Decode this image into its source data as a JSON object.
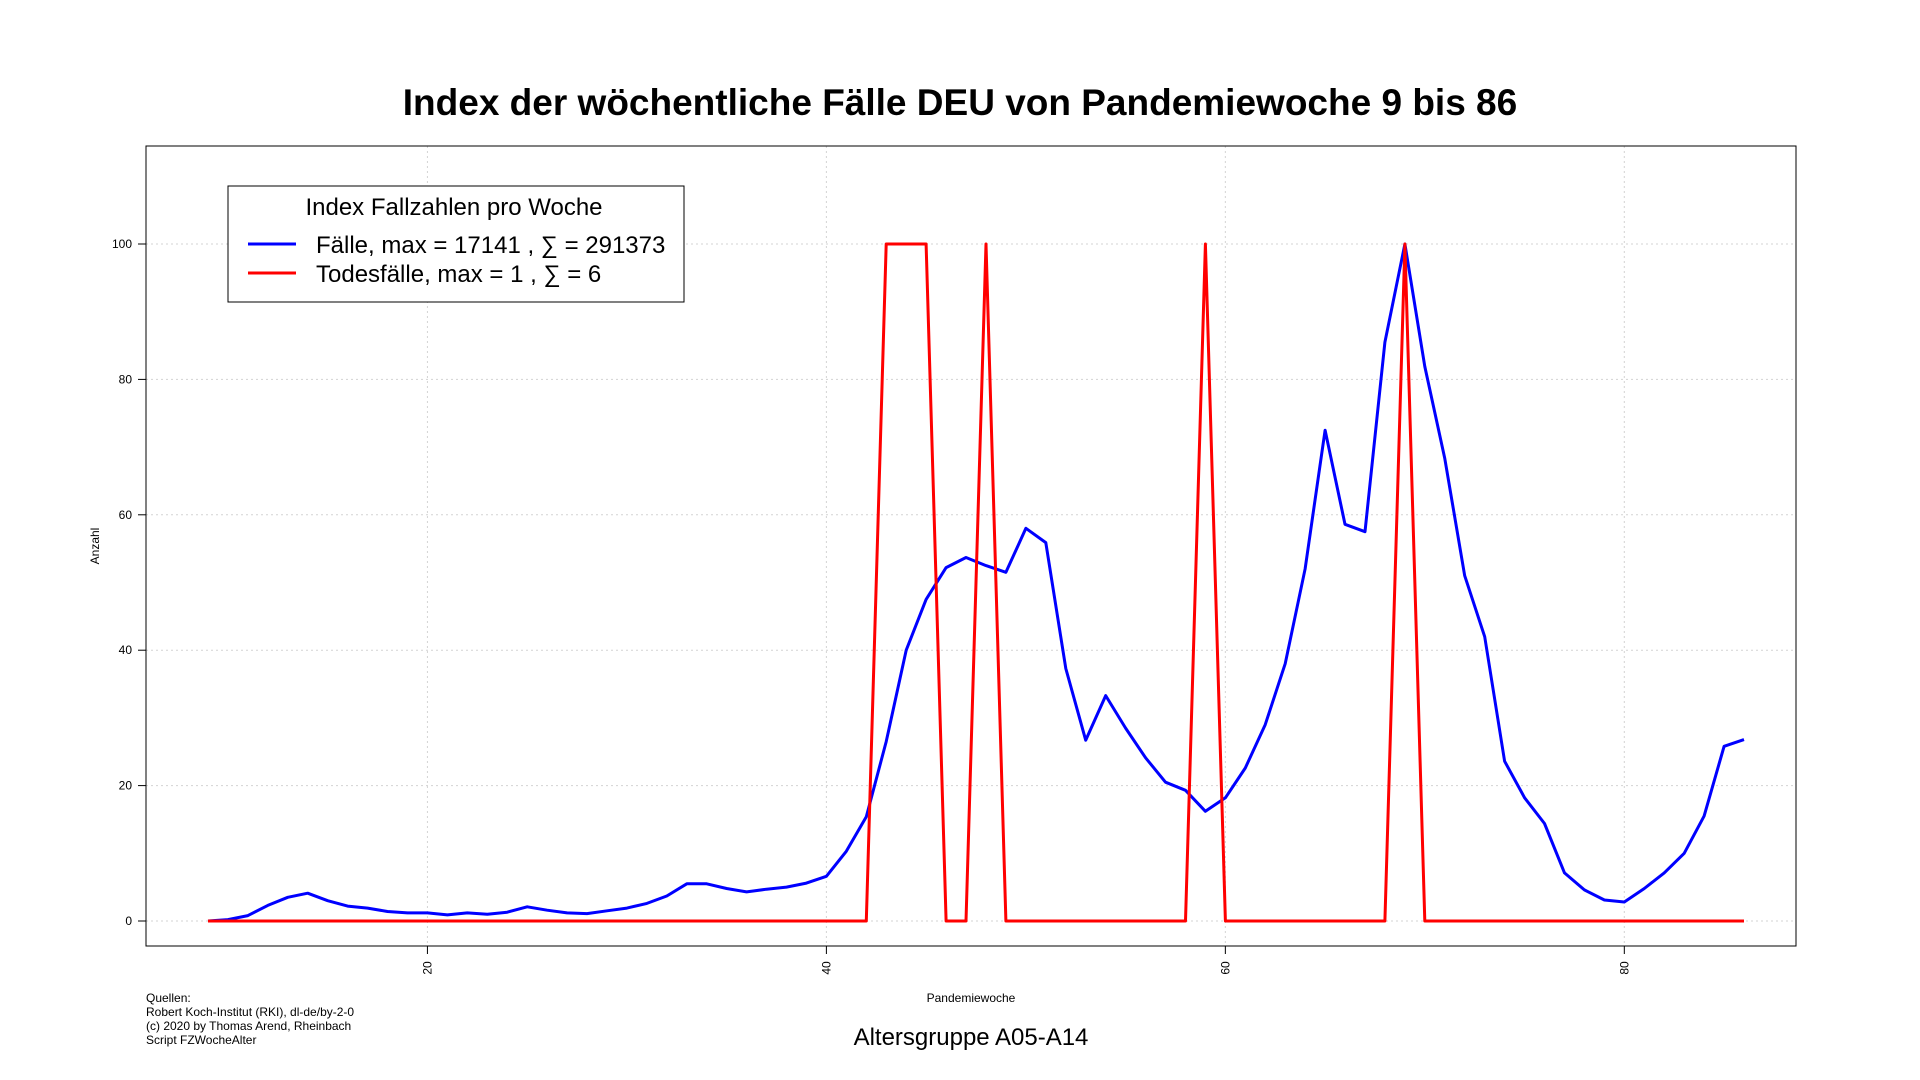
{
  "chart_data": {
    "type": "line",
    "title": "Index der wöchentliche Fälle DEU von Pandemiewoche 9 bis 86",
    "xlabel": "Pandemiewoche",
    "ylabel": "Anzahl",
    "xlim": [
      9,
      86
    ],
    "ylim": [
      0,
      100
    ],
    "xticks": [
      20,
      40,
      60,
      80
    ],
    "yticks": [
      0,
      20,
      40,
      60,
      80,
      100
    ],
    "grid": true,
    "legend": {
      "title": "Index Fallzahlen pro Woche",
      "position": "top-left"
    },
    "subtitle": "Altersgruppe A05-A14",
    "source_lines": [
      "Quellen:",
      "Robert Koch-Institut (RKI), dl-de/by-2-0",
      "(c) 2020 by Thomas Arend, Rheinbach",
      "Script FZWocheAlter"
    ],
    "series": [
      {
        "name": "Fälle, max = 17141 ,  ∑  = 291373",
        "color": "#0000ff",
        "x": [
          9,
          10,
          11,
          12,
          13,
          14,
          15,
          16,
          17,
          18,
          19,
          20,
          21,
          22,
          23,
          24,
          25,
          26,
          27,
          28,
          29,
          30,
          31,
          32,
          33,
          34,
          35,
          36,
          37,
          38,
          39,
          40,
          41,
          42,
          43,
          44,
          45,
          46,
          47,
          48,
          49,
          50,
          51,
          52,
          53,
          54,
          55,
          56,
          57,
          58,
          59,
          60,
          61,
          62,
          63,
          64,
          65,
          66,
          67,
          68,
          69,
          70,
          71,
          72,
          73,
          74,
          75,
          76,
          77,
          78,
          79,
          80,
          81,
          82,
          83,
          84,
          85,
          86
        ],
        "y": [
          0,
          0.2,
          0.8,
          2.3,
          3.5,
          4.1,
          3.0,
          2.2,
          1.9,
          1.4,
          1.2,
          1.2,
          0.9,
          1.2,
          1.0,
          1.3,
          2.1,
          1.6,
          1.2,
          1.1,
          1.5,
          1.9,
          2.6,
          3.7,
          5.5,
          5.5,
          4.8,
          4.3,
          4.7,
          5.0,
          5.6,
          6.6,
          10.3,
          15.4,
          26.5,
          40.0,
          47.5,
          52.2,
          53.7,
          52.5,
          51.5,
          58.0,
          55.9,
          37.3,
          26.7,
          33.3,
          28.5,
          24.1,
          20.5,
          19.3,
          16.2,
          18.2,
          22.6,
          29.0,
          38.0,
          52.0,
          72.5,
          58.6,
          57.5,
          85.5,
          100,
          81.9,
          68.3,
          51.0,
          42.0,
          23.6,
          18.2,
          14.4,
          7.1,
          4.6,
          3.1,
          2.8,
          4.8,
          7.1,
          10.0,
          15.5,
          25.8,
          26.8
        ]
      },
      {
        "name": "Todesfälle, max = 1 ,  ∑  = 6",
        "color": "#ff0000",
        "x": [
          9,
          10,
          11,
          12,
          13,
          14,
          15,
          16,
          17,
          18,
          19,
          20,
          21,
          22,
          23,
          24,
          25,
          26,
          27,
          28,
          29,
          30,
          31,
          32,
          33,
          34,
          35,
          36,
          37,
          38,
          39,
          40,
          41,
          42,
          43,
          44,
          45,
          46,
          47,
          48,
          49,
          50,
          51,
          52,
          53,
          54,
          55,
          56,
          57,
          58,
          59,
          60,
          61,
          62,
          63,
          64,
          65,
          66,
          67,
          68,
          69,
          70,
          71,
          72,
          73,
          74,
          75,
          76,
          77,
          78,
          79,
          80,
          81,
          82,
          83,
          84,
          85,
          86
        ],
        "y": [
          0,
          0,
          0,
          0,
          0,
          0,
          0,
          0,
          0,
          0,
          0,
          0,
          0,
          0,
          0,
          0,
          0,
          0,
          0,
          0,
          0,
          0,
          0,
          0,
          0,
          0,
          0,
          0,
          0,
          0,
          0,
          0,
          0,
          0,
          100,
          100,
          100,
          0,
          0,
          100,
          0,
          0,
          0,
          0,
          0,
          0,
          0,
          0,
          0,
          0,
          100,
          0,
          0,
          0,
          0,
          0,
          0,
          0,
          0,
          0,
          100,
          0,
          0,
          0,
          0,
          0,
          0,
          0,
          0,
          0,
          0,
          0,
          0,
          0,
          0,
          0,
          0,
          0
        ]
      }
    ]
  }
}
